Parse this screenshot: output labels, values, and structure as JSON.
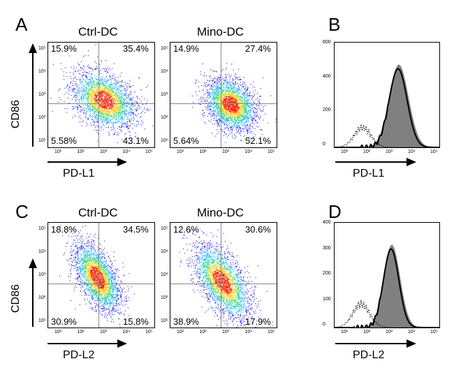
{
  "figure": {
    "panels": [
      {
        "letter": "A",
        "type": "dotplot_pair",
        "ylabel": "CD86",
        "xlabel": "PD-L1",
        "plots": [
          {
            "title": "Ctrl-DC",
            "q_ul": "15.9%",
            "q_ur": "35.4%",
            "q_ll": "5.58%",
            "q_lr": "43.1%"
          },
          {
            "title": "Mino-DC",
            "q_ul": "14.9%",
            "q_ur": "27.4%",
            "q_ll": "5.64%",
            "q_lr": "52.1%"
          }
        ]
      },
      {
        "letter": "B",
        "type": "histogram",
        "xlabel": "PD-L1",
        "yticks": [
          "600",
          "400",
          "200",
          "0"
        ]
      },
      {
        "letter": "C",
        "type": "dotplot_pair",
        "ylabel": "CD86",
        "xlabel": "PD-L2",
        "plots": [
          {
            "title": "Ctrl-DC",
            "q_ul": "18.8%",
            "q_ur": "34.5%",
            "q_ll": "30.9%",
            "q_lr": "15.8%"
          },
          {
            "title": "Mino-DC",
            "q_ul": "12.6%",
            "q_ur": "30.6%",
            "q_ll": "38.9%",
            "q_lr": "17.9%"
          }
        ]
      },
      {
        "letter": "D",
        "type": "histogram",
        "xlabel": "PD-L2",
        "yticks": [
          "400",
          "300",
          "200",
          "100",
          "0"
        ]
      }
    ],
    "log_ticks": [
      "10¹",
      "10²",
      "10³",
      "10⁴",
      "10⁵"
    ]
  },
  "colors": {
    "density_low": "#1a1aff",
    "density_mid": "#22dd88",
    "density_high": "#ff2200",
    "hist_fill": "#808080",
    "hist_line": "#000000"
  }
}
